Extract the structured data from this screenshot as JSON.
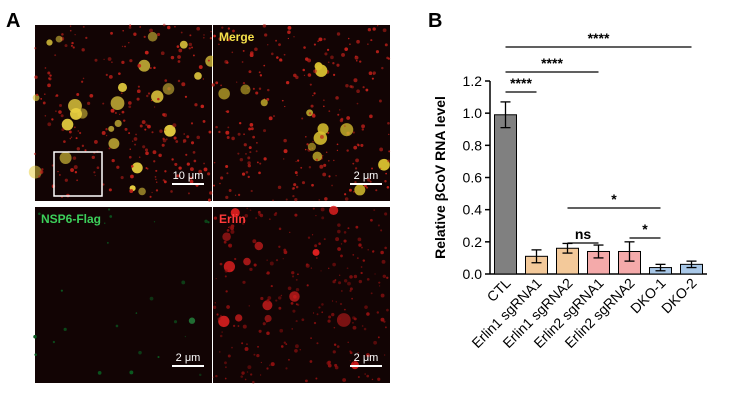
{
  "panel_labels": [
    "A",
    "B"
  ],
  "panel_a": {
    "images": [
      {
        "label": null,
        "scale_bar": "10 μm"
      },
      {
        "label": "Merge",
        "scale_bar": "2 μm"
      },
      {
        "label": "NSP6-Flag",
        "scale_bar": "2 μm"
      },
      {
        "label": "Erlin",
        "scale_bar": "2 μm"
      }
    ]
  },
  "chart_data": {
    "type": "bar",
    "y_label": "Relative βCoV RNA level",
    "categories": [
      "CTL",
      "Erlin1 sgRNA1",
      "Erlin1 sgRNA2",
      "Erlin2 sgRNA1",
      "Erlin2 sgRNA2",
      "DKO-1",
      "DKO-2"
    ],
    "values": [
      0.99,
      0.11,
      0.16,
      0.14,
      0.14,
      0.04,
      0.06
    ],
    "errors": [
      0.08,
      0.04,
      0.03,
      0.04,
      0.06,
      0.02,
      0.02
    ],
    "colors": [
      "#808080",
      "#f3c99a",
      "#f3c99a",
      "#f4aaaa",
      "#f4aaaa",
      "#a9c8e8",
      "#a9c8e8"
    ],
    "ylim": [
      0,
      1.2
    ],
    "yticks": [
      {
        "value": 0,
        "label": "0.0"
      },
      {
        "value": 0.2,
        "label": "0.2"
      },
      {
        "value": 0.4,
        "label": "0.4"
      },
      {
        "value": 0.6,
        "label": "0.6"
      },
      {
        "value": 0.8,
        "label": "0.8"
      },
      {
        "value": 1,
        "label": "1.0"
      },
      {
        "value": 1.2,
        "label": "1.2"
      }
    ],
    "significance": [
      {
        "between": [
          0,
          6
        ],
        "text": "****"
      },
      {
        "between": [
          0,
          3
        ],
        "text": "****"
      },
      {
        "between": [
          0,
          1
        ],
        "text": "****"
      },
      {
        "between": [
          2,
          5
        ],
        "text": "*"
      },
      {
        "between": [
          4,
          5
        ],
        "text": "*"
      },
      {
        "between": [
          2,
          3
        ],
        "text": "ns"
      }
    ]
  }
}
